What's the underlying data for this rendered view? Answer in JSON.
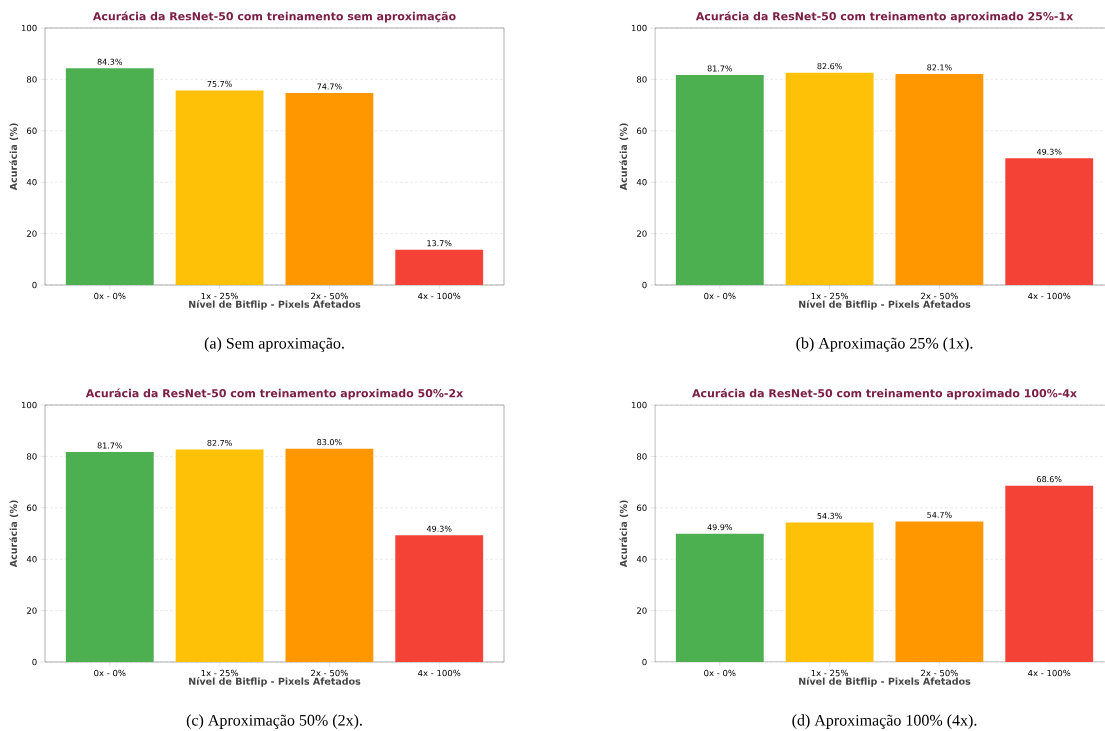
{
  "chart_data": [
    {
      "type": "bar",
      "title": "Acurácia da ResNet-50 com treinamento sem aproximação",
      "xlabel": "Nível de Bitflip - Pixels Afetados",
      "ylabel": "Acurácia (%)",
      "categories": [
        "0x - 0%",
        "1x - 25%",
        "2x - 50%",
        "4x - 100%"
      ],
      "values": [
        84.3,
        75.7,
        74.7,
        13.7
      ],
      "value_labels": [
        "84.3%",
        "75.7%",
        "74.7%",
        "13.7%"
      ],
      "colors": [
        "#4caf50",
        "#ffc107",
        "#ff9800",
        "#f44336"
      ],
      "ylim": [
        0,
        100
      ],
      "yticks": [
        0,
        20,
        40,
        60,
        80,
        100
      ],
      "grid": "y",
      "annotations": [
        "(a) Sem aproximação."
      ]
    },
    {
      "type": "bar",
      "title": "Acurácia da ResNet-50 com treinamento aproximado 25%-1x",
      "xlabel": "Nível de Bitflip - Pixels Afetados",
      "ylabel": "Acurácia (%)",
      "categories": [
        "0x - 0%",
        "1x - 25%",
        "2x - 50%",
        "4x - 100%"
      ],
      "values": [
        81.7,
        82.6,
        82.1,
        49.3
      ],
      "value_labels": [
        "81.7%",
        "82.6%",
        "82.1%",
        "49.3%"
      ],
      "colors": [
        "#4caf50",
        "#ffc107",
        "#ff9800",
        "#f44336"
      ],
      "ylim": [
        0,
        100
      ],
      "yticks": [
        0,
        20,
        40,
        60,
        80,
        100
      ],
      "grid": "y",
      "annotations": [
        "(b) Aproximação 25% (1x)."
      ]
    },
    {
      "type": "bar",
      "title": "Acurácia da ResNet-50 com treinamento aproximado 50%-2x",
      "xlabel": "Nível de Bitflip - Pixels Afetados",
      "ylabel": "Acurácia (%)",
      "categories": [
        "0x - 0%",
        "1x - 25%",
        "2x - 50%",
        "4x - 100%"
      ],
      "values": [
        81.7,
        82.7,
        83.0,
        49.3
      ],
      "value_labels": [
        "81.7%",
        "82.7%",
        "83.0%",
        "49.3%"
      ],
      "colors": [
        "#4caf50",
        "#ffc107",
        "#ff9800",
        "#f44336"
      ],
      "ylim": [
        0,
        100
      ],
      "yticks": [
        0,
        20,
        40,
        60,
        80,
        100
      ],
      "grid": "y",
      "annotations": [
        "(c) Aproximação 50% (2x)."
      ]
    },
    {
      "type": "bar",
      "title": "Acurácia da ResNet-50 com treinamento aproximado 100%-4x",
      "xlabel": "Nível de Bitflip - Pixels Afetados",
      "ylabel": "Acurácia (%)",
      "categories": [
        "0x - 0%",
        "1x - 25%",
        "2x - 50%",
        "4x - 100%"
      ],
      "values": [
        49.9,
        54.3,
        54.7,
        68.6
      ],
      "value_labels": [
        "49.9%",
        "54.3%",
        "54.7%",
        "68.6%"
      ],
      "colors": [
        "#4caf50",
        "#ffc107",
        "#ff9800",
        "#f44336"
      ],
      "ylim": [
        0,
        100
      ],
      "yticks": [
        0,
        20,
        40,
        60,
        80,
        100
      ],
      "grid": "y",
      "annotations": [
        "(d) Aproximação 100% (4x)."
      ]
    }
  ]
}
